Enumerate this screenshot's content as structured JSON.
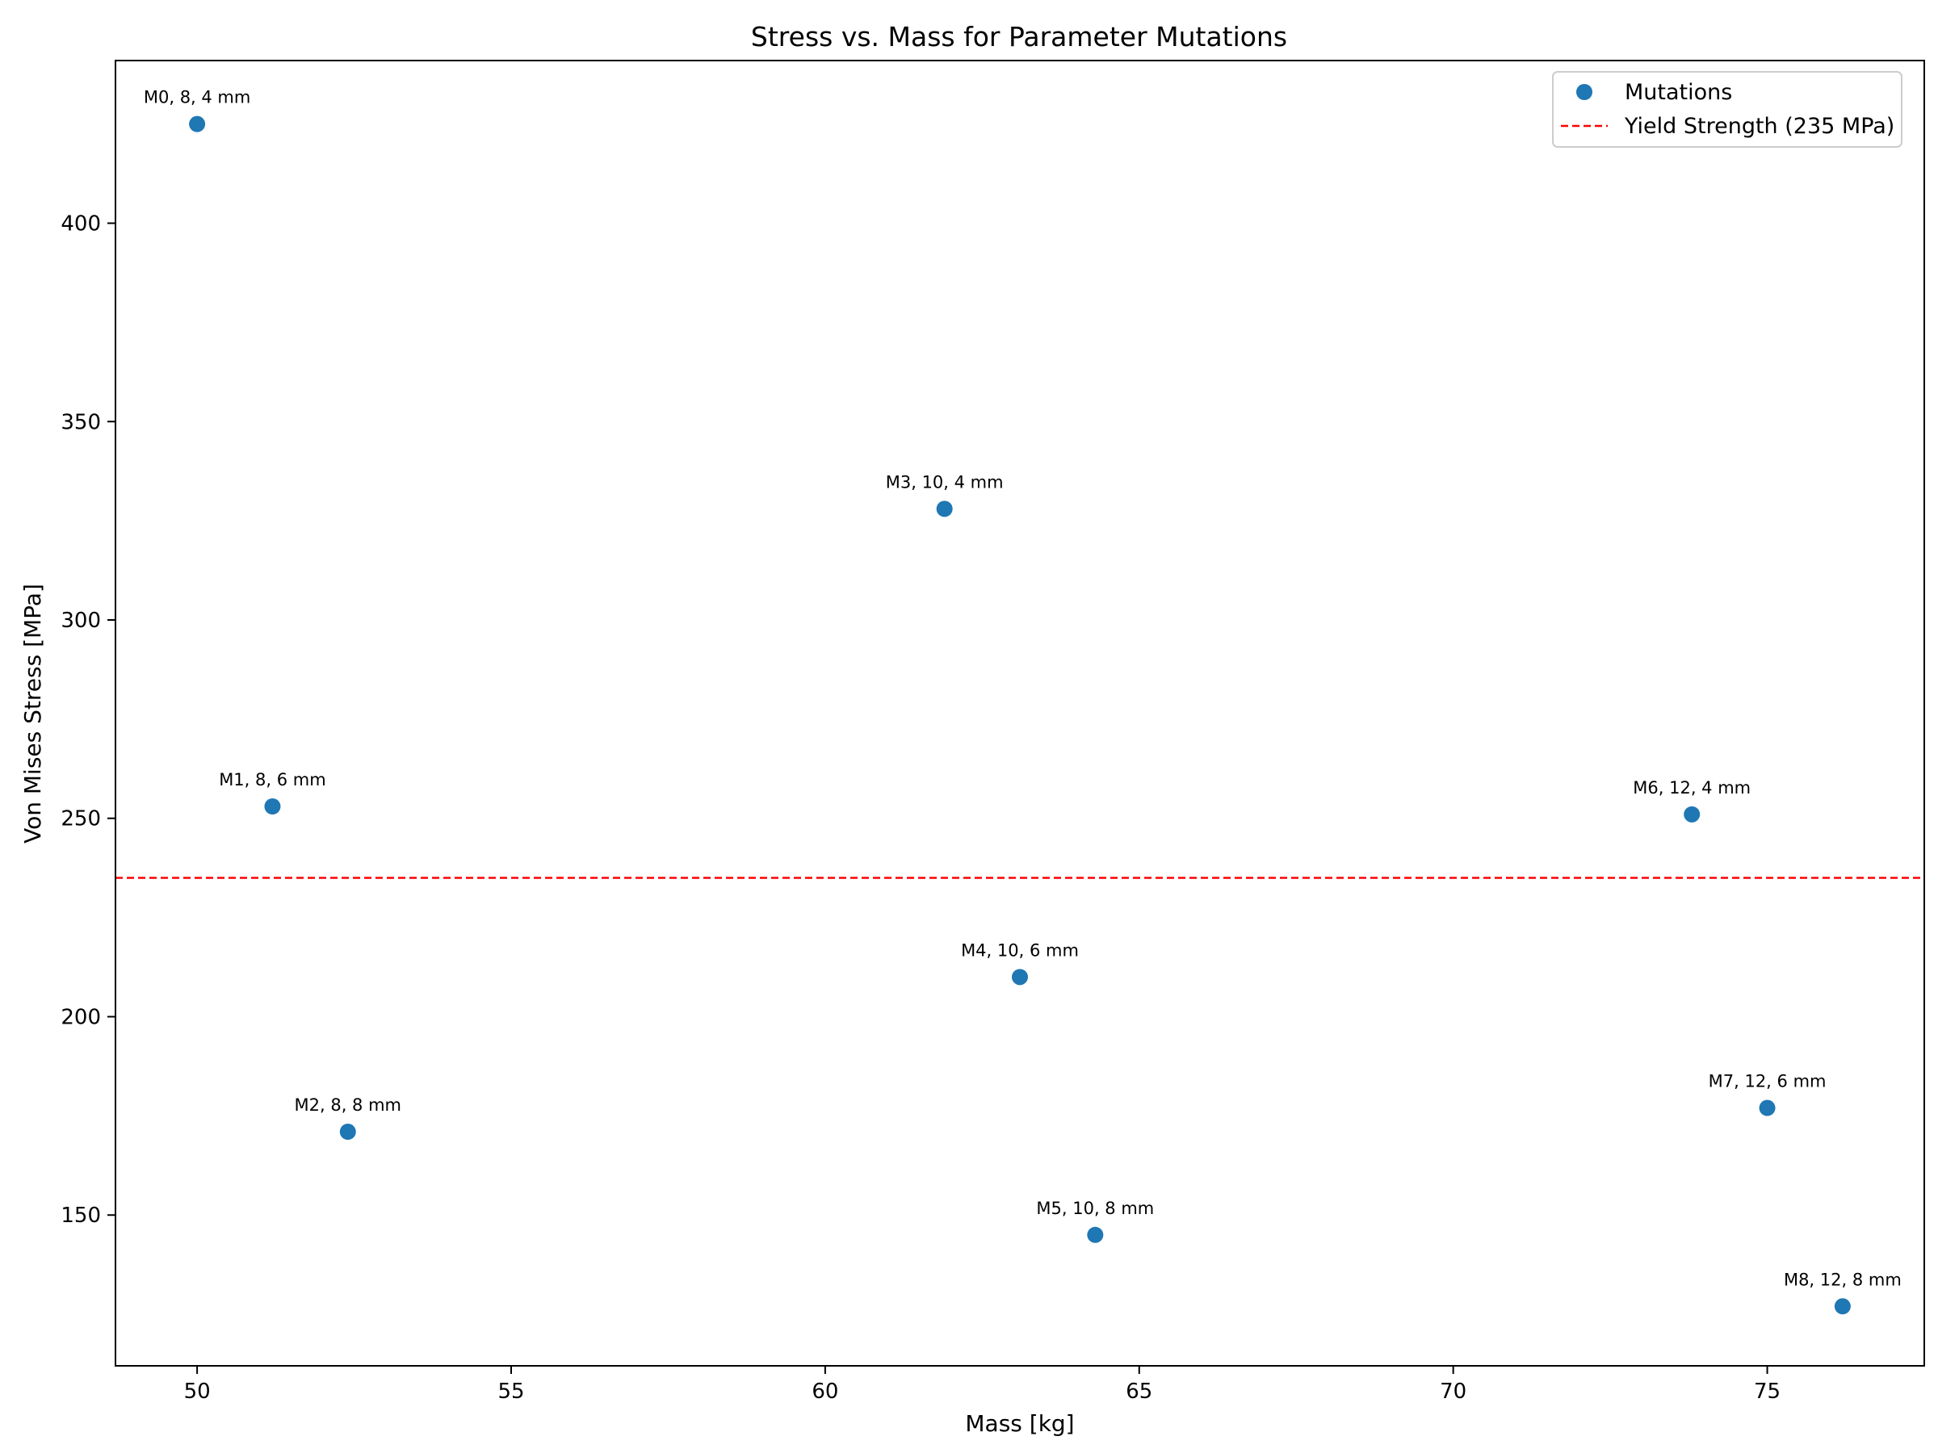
{
  "chart_data": {
    "type": "scatter",
    "title": "Stress vs. Mass for Parameter Mutations",
    "xlabel": "Mass [kg]",
    "ylabel": "Von Mises Stress [MPa]",
    "xlim": [
      48.7,
      77.5
    ],
    "ylim": [
      112,
      441
    ],
    "xticks": [
      50,
      55,
      60,
      65,
      70,
      75
    ],
    "yticks": [
      150,
      200,
      250,
      300,
      350,
      400
    ],
    "grid": false,
    "legend_position": "top-right",
    "series": [
      {
        "name": "Mutations",
        "color": "#1f77b4",
        "marker": "circle",
        "points": [
          {
            "x": 50.0,
            "y": 425,
            "label": "M0, 8, 4 mm"
          },
          {
            "x": 51.2,
            "y": 253,
            "label": "M1, 8, 6 mm"
          },
          {
            "x": 52.4,
            "y": 171,
            "label": "M2, 8, 8 mm"
          },
          {
            "x": 61.9,
            "y": 328,
            "label": "M3, 10, 4 mm"
          },
          {
            "x": 63.1,
            "y": 210,
            "label": "M4, 10, 6 mm"
          },
          {
            "x": 64.3,
            "y": 145,
            "label": "M5, 10, 8 mm"
          },
          {
            "x": 73.8,
            "y": 251,
            "label": "M6, 12, 4 mm"
          },
          {
            "x": 75.0,
            "y": 177,
            "label": "M7, 12, 6 mm"
          },
          {
            "x": 76.2,
            "y": 127,
            "label": "M8, 12, 8 mm"
          }
        ]
      }
    ],
    "reference_lines": [
      {
        "name": "Yield Strength (235 MPa)",
        "orientation": "horizontal",
        "y": 235,
        "color": "#ff0000",
        "style": "dashed"
      }
    ]
  }
}
